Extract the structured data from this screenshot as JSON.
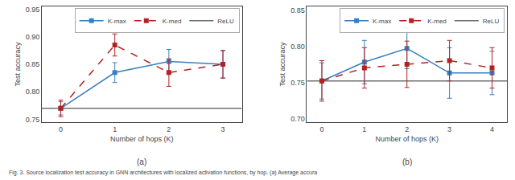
{
  "chart_data": [
    {
      "type": "line",
      "subtitle": "(a)",
      "x_label": "Number of hops (K)",
      "y_label": "Test accuracy",
      "x": [
        0,
        1,
        2,
        3
      ],
      "xlim": [
        -0.35,
        3.35
      ],
      "xticks": [
        0,
        1,
        2,
        3
      ],
      "ylim": [
        0.745,
        0.955
      ],
      "yticks": [
        0.75,
        {
          "value": 0.8,
          "label": "0.80"
        },
        0.85,
        {
          "value": 0.9,
          "label": "0.90"
        },
        0.95
      ],
      "grid": false,
      "legend": "upper right",
      "series": [
        {
          "name": "K-max",
          "color": "#3a7ebf",
          "marker": "square",
          "line_style": "solid",
          "values": [
            0.77,
            0.835,
            0.855,
            0.85
          ],
          "yerr": [
            0.012,
            0.018,
            0.022,
            0.025
          ]
        },
        {
          "name": "K-med",
          "color": "#b22222",
          "marker": "square",
          "line_style": "dashed",
          "values": [
            0.77,
            0.885,
            0.835,
            0.85
          ],
          "yerr": [
            0.015,
            0.02,
            0.025,
            0.025
          ]
        },
        {
          "name": "ReLU",
          "color": "#707070",
          "type": "hline",
          "line_style": "solid",
          "y": 0.77
        }
      ]
    },
    {
      "type": "line",
      "subtitle": "(b)",
      "x_label": "Number of hops (K)",
      "y_label": "Test accuracy",
      "x": [
        0,
        1,
        2,
        3,
        4
      ],
      "xlim": [
        -0.35,
        4.35
      ],
      "xticks": [
        0,
        1,
        2,
        3,
        4
      ],
      "ylim": [
        0.695,
        0.855
      ],
      "yticks": [
        {
          "value": 0.7,
          "label": "0.70"
        },
        0.75,
        {
          "value": 0.8,
          "label": "0.80"
        },
        0.85
      ],
      "grid": false,
      "legend": "upper right",
      "series": [
        {
          "name": "K-max",
          "color": "#3a7ebf",
          "marker": "square",
          "line_style": "solid",
          "values": [
            0.752,
            0.778,
            0.797,
            0.763,
            0.763
          ],
          "yerr": [
            0.025,
            0.03,
            0.028,
            0.035,
            0.03
          ]
        },
        {
          "name": "K-med",
          "color": "#b22222",
          "marker": "square",
          "line_style": "dashed",
          "values": [
            0.752,
            0.77,
            0.775,
            0.78,
            0.77
          ],
          "yerr": [
            0.028,
            0.028,
            0.032,
            0.028,
            0.028
          ]
        },
        {
          "name": "ReLU",
          "color": "#707070",
          "type": "hline",
          "line_style": "solid",
          "y": 0.752
        }
      ]
    }
  ],
  "annotations": [
    "Fig. 3. Source localization test accuracy in GNN architectures with localized activation functions, by hop. (a) Average accura"
  ]
}
